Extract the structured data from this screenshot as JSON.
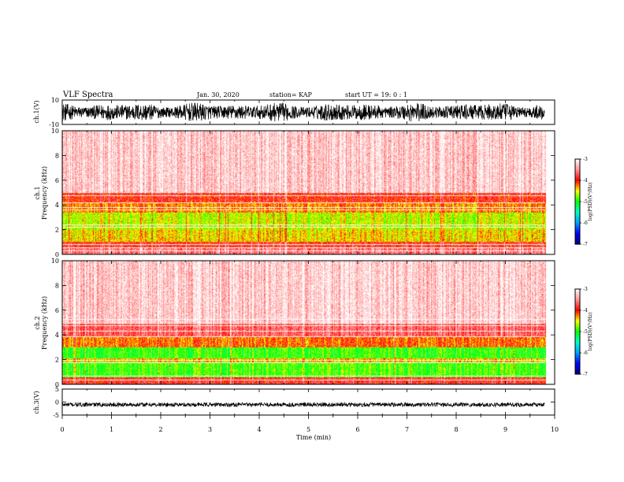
{
  "header": {
    "title": "VLF Spectra",
    "date": "Jan. 30, 2020",
    "station": "station= KAP",
    "start": "start UT =   19: 0  : 1"
  },
  "colorbar_label": "log(PSD)(V²/Hz)",
  "colors": {
    "background": "#ffffff",
    "waveform": "#000000",
    "scale": [
      "#ffffff",
      "#ff0000",
      "#ffff00",
      "#00ff00",
      "#00ffff",
      "#0000ff",
      "#000080"
    ]
  },
  "chart_data": [
    {
      "id": "ch1_waveform",
      "type": "line",
      "ylabel": "ch.1(V)",
      "ylim": [
        -10,
        10
      ],
      "y_ticks": [
        10,
        -10
      ],
      "xlim": [
        0,
        10
      ],
      "data_end_min": 9.8,
      "amplitude_range_v": [
        -8,
        8
      ],
      "note_style": "dense noisy waveform"
    },
    {
      "id": "ch1_spectrogram",
      "type": "heatmap",
      "ylabel": "ch.1\nFrequency (kHz)",
      "ylim": [
        0,
        10
      ],
      "y_ticks": [
        0,
        2,
        4,
        6,
        8,
        10
      ],
      "xlim": [
        0,
        10
      ],
      "data_end_min": 9.8,
      "color_scale": {
        "min": -7,
        "max": -3,
        "ticks": [
          -3,
          -4,
          -5,
          -6,
          -7
        ],
        "label": "log(PSD)(V²/Hz)"
      },
      "bands_khz": [
        {
          "from": 0.0,
          "to": 0.6,
          "log_psd": -3.6
        },
        {
          "from": 0.6,
          "to": 1.0,
          "log_psd": -3.9
        },
        {
          "from": 1.0,
          "to": 2.0,
          "log_psd": -4.45
        },
        {
          "from": 2.0,
          "to": 3.4,
          "log_psd": -4.6
        },
        {
          "from": 3.4,
          "to": 4.2,
          "log_psd": -4.25
        },
        {
          "from": 4.2,
          "to": 5.0,
          "log_psd": -3.95
        },
        {
          "from": 5.0,
          "to": 10.0,
          "log_psd": -3.25
        }
      ],
      "lines_khz": [
        0.3,
        0.6,
        0.8,
        2.2,
        2.4,
        3.6,
        3.8,
        4.2,
        4.8
      ]
    },
    {
      "id": "ch2_spectrogram",
      "type": "heatmap",
      "ylabel": "ch.2\nFrequency (kHz)",
      "ylim": [
        0,
        10
      ],
      "y_ticks": [
        0,
        2,
        4,
        6,
        8,
        10
      ],
      "xlim": [
        0,
        10
      ],
      "data_end_min": 9.8,
      "color_scale": {
        "min": -7,
        "max": -3,
        "ticks": [
          -3,
          -4,
          -5,
          -6,
          -7
        ],
        "label": "log(PSD)(V²/Hz)"
      },
      "bands_khz": [
        {
          "from": 0.0,
          "to": 0.6,
          "log_psd": -3.9
        },
        {
          "from": 0.6,
          "to": 1.8,
          "log_psd": -4.9
        },
        {
          "from": 1.8,
          "to": 2.1,
          "log_psd": -4.4
        },
        {
          "from": 2.1,
          "to": 3.0,
          "log_psd": -4.95
        },
        {
          "from": 3.0,
          "to": 3.8,
          "log_psd": -4.2
        },
        {
          "from": 3.8,
          "to": 5.0,
          "log_psd": -3.7
        },
        {
          "from": 5.0,
          "to": 10.0,
          "log_psd": -3.25
        }
      ],
      "lines_khz": [
        0.4,
        0.7,
        1.8,
        2.0,
        3.9,
        4.3,
        4.8,
        5.0,
        5.3
      ]
    },
    {
      "id": "ch3_waveform",
      "type": "line",
      "ylabel": "ch.3(V)",
      "ylim": [
        -5,
        5
      ],
      "y_ticks": [
        5,
        0,
        -5
      ],
      "xlim": [
        0,
        10
      ],
      "xlabel": "Time (min)",
      "x_ticks": [
        0,
        1,
        2,
        3,
        4,
        5,
        6,
        7,
        8,
        9,
        10
      ],
      "data_end_min": 9.8,
      "baseline_v": -1.0,
      "amplitude_range_v": [
        -1.8,
        -0.2
      ]
    }
  ]
}
